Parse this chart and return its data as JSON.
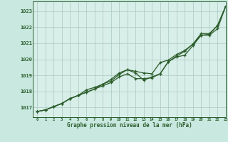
{
  "title": "Graphe pression niveau de la mer (hPa)",
  "bg_color": "#c8e8e0",
  "plot_bg_color": "#d8eee8",
  "grid_color": "#a8c8c0",
  "line_color": "#2a5c2a",
  "xlim": [
    -0.5,
    23
  ],
  "ylim": [
    1016.4,
    1023.6
  ],
  "xticks": [
    0,
    1,
    2,
    3,
    4,
    5,
    6,
    7,
    8,
    9,
    10,
    11,
    12,
    13,
    14,
    15,
    16,
    17,
    18,
    19,
    20,
    21,
    22,
    23
  ],
  "yticks": [
    1017,
    1018,
    1019,
    1020,
    1021,
    1022,
    1023
  ],
  "series1": [
    1016.75,
    1016.85,
    1017.05,
    1017.25,
    1017.55,
    1017.75,
    1017.95,
    1018.15,
    1018.35,
    1018.55,
    1018.9,
    1019.1,
    1018.8,
    1018.8,
    1018.85,
    1019.1,
    1019.85,
    1020.15,
    1020.25,
    1020.85,
    1021.5,
    1021.5,
    1021.9,
    1023.3
  ],
  "series2": [
    1016.75,
    1016.85,
    1017.05,
    1017.25,
    1017.55,
    1017.75,
    1017.95,
    1018.15,
    1018.45,
    1018.65,
    1019.05,
    1019.35,
    1019.15,
    1018.7,
    1018.9,
    1019.1,
    1019.85,
    1020.2,
    1020.5,
    1020.95,
    1021.5,
    1021.55,
    1022.1,
    1023.3
  ],
  "series3": [
    1016.75,
    1016.85,
    1017.05,
    1017.25,
    1017.55,
    1017.75,
    1018.1,
    1018.25,
    1018.45,
    1018.75,
    1019.15,
    1019.35,
    1019.25,
    1019.15,
    1019.1,
    1019.8,
    1019.95,
    1020.3,
    1020.55,
    1020.95,
    1021.6,
    1021.6,
    1022.1,
    1023.3
  ]
}
